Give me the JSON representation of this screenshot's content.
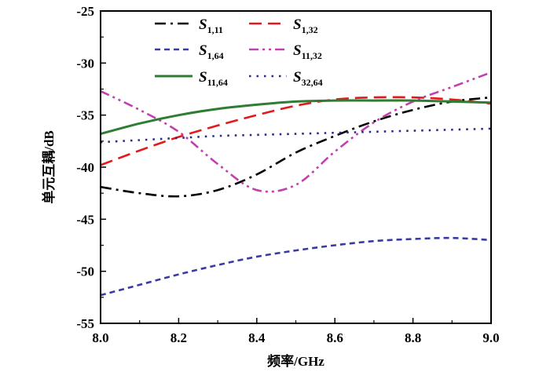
{
  "chart_data": {
    "type": "line",
    "xlabel": "频率/GHz",
    "ylabel": "单元互耦/dB",
    "xlim": [
      8.0,
      9.0
    ],
    "ylim": [
      -55,
      -25
    ],
    "x_ticks": [
      "8.0",
      "8.2",
      "8.4",
      "8.6",
      "8.8",
      "9.0"
    ],
    "y_ticks": [
      "-25",
      "-30",
      "-35",
      "-40",
      "-45",
      "-50",
      "-55"
    ],
    "legend_position": "top",
    "series": [
      {
        "key": "s1_11",
        "label_main": "S",
        "label_sub": "1,11",
        "color": "#000000",
        "dash": "dashdot",
        "x": [
          8.0,
          8.1,
          8.2,
          8.3,
          8.4,
          8.5,
          8.6,
          8.7,
          8.8,
          8.9,
          9.0
        ],
        "y": [
          -41.9,
          -42.5,
          -42.8,
          -42.2,
          -40.7,
          -38.6,
          -37.0,
          -35.6,
          -34.5,
          -33.7,
          -33.3
        ]
      },
      {
        "key": "s1_32",
        "label_main": "S",
        "label_sub": "1,32",
        "color": "#e31a1c",
        "dash": "dash",
        "x": [
          8.0,
          8.1,
          8.2,
          8.3,
          8.4,
          8.5,
          8.6,
          8.7,
          8.8,
          8.9,
          9.0
        ],
        "y": [
          -39.8,
          -38.4,
          -37.1,
          -36.0,
          -35.0,
          -34.1,
          -33.5,
          -33.3,
          -33.3,
          -33.5,
          -33.9
        ]
      },
      {
        "key": "s1_64",
        "label_main": "S",
        "label_sub": "1,64",
        "color": "#3a3aa5",
        "dash": "shortdash",
        "x": [
          8.0,
          8.1,
          8.2,
          8.3,
          8.4,
          8.5,
          8.6,
          8.7,
          8.8,
          8.9,
          9.0
        ],
        "y": [
          -52.3,
          -51.3,
          -50.3,
          -49.4,
          -48.6,
          -48.0,
          -47.5,
          -47.1,
          -46.9,
          -46.8,
          -47.0
        ]
      },
      {
        "key": "s11_32",
        "label_main": "S",
        "label_sub": "11,32",
        "color": "#c040b0",
        "dash": "dashdotdot",
        "x": [
          8.0,
          8.1,
          8.2,
          8.3,
          8.4,
          8.5,
          8.6,
          8.7,
          8.8,
          8.9,
          9.0
        ],
        "y": [
          -32.7,
          -34.5,
          -36.6,
          -39.7,
          -42.2,
          -41.7,
          -38.5,
          -35.7,
          -33.7,
          -32.3,
          -30.9
        ]
      },
      {
        "key": "s11_64",
        "label_main": "S",
        "label_sub": "11,64",
        "color": "#2e7d32",
        "dash": "solid",
        "x": [
          8.0,
          8.1,
          8.2,
          8.3,
          8.4,
          8.5,
          8.6,
          8.7,
          8.8,
          8.9,
          9.0
        ],
        "y": [
          -36.8,
          -35.8,
          -35.0,
          -34.4,
          -34.0,
          -33.7,
          -33.6,
          -33.6,
          -33.6,
          -33.7,
          -33.8
        ]
      },
      {
        "key": "s32_64",
        "label_main": "S",
        "label_sub": "32,64",
        "color": "#2a2a8a",
        "dash": "dot",
        "x": [
          8.0,
          8.1,
          8.2,
          8.3,
          8.4,
          8.5,
          8.6,
          8.7,
          8.8,
          8.9,
          9.0
        ],
        "y": [
          -37.6,
          -37.4,
          -37.2,
          -37.0,
          -36.9,
          -36.8,
          -36.7,
          -36.6,
          -36.5,
          -36.4,
          -36.3
        ]
      }
    ]
  }
}
